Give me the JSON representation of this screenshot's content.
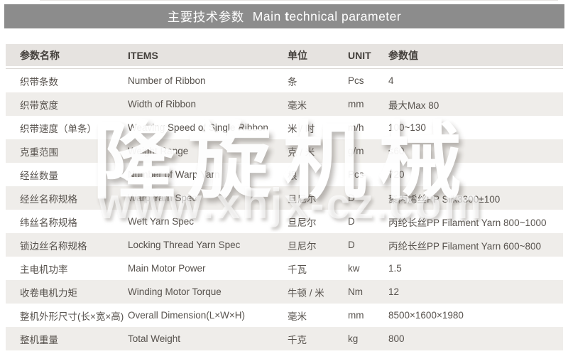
{
  "title": {
    "cn": "主要技术参数",
    "en_pre": "Main ",
    "en_bold": "t",
    "en_post": "echnical parameter"
  },
  "watermark": {
    "brand": "隆旋机械",
    "url": "www.xhjx-cz.com"
  },
  "table": {
    "headers": {
      "name_cn": "参数名称",
      "items": "ITEMS",
      "unit_cn": "单位",
      "unit_en": "UNIT",
      "value": "参数值"
    },
    "rows": [
      {
        "name_cn": "织带条数",
        "item": "Number of Ribbon",
        "unit_cn": "条",
        "unit_en": "Pcs",
        "value": "4"
      },
      {
        "name_cn": "织带宽度",
        "item": "Width of Ribbon",
        "unit_cn": "毫米",
        "unit_en": "mm",
        "value": "最大Max 80"
      },
      {
        "name_cn": "织带速度（单条）",
        "item": "Weaving Speed of Single Ribbon",
        "unit_cn": "米 / 时",
        "unit_en": "m/h",
        "value": "100~130"
      },
      {
        "name_cn": "克重范围",
        "item": "Weight Range",
        "unit_cn": "克 / 米",
        "unit_en": "g/m",
        "value": "≤60"
      },
      {
        "name_cn": "经丝数量",
        "item": "Number of Warp Yarn",
        "unit_cn": "根",
        "unit_en": "Pcs",
        "value": "720"
      },
      {
        "name_cn": "经丝名称规格",
        "item": "Warp Yarn Spec",
        "unit_cn": "旦尼尔",
        "unit_en": "D",
        "value": "聚丙烯丝PP Silk3300±100"
      },
      {
        "name_cn": "纬丝名称规格",
        "item": "Weft Yarn Spec",
        "unit_cn": "旦尼尔",
        "unit_en": "D",
        "value": "丙纶长丝PP Filament Yarn 800~1000"
      },
      {
        "name_cn": "锁边丝名称规格",
        "item": "Locking Thread Yarn Spec",
        "unit_cn": "旦尼尔",
        "unit_en": "D",
        "value": "丙纶长丝PP Filament Yarn 600~800"
      },
      {
        "name_cn": "主电机功率",
        "item": "Main Motor Power",
        "unit_cn": "千瓦",
        "unit_en": "kw",
        "value": "1.5"
      },
      {
        "name_cn": "收卷电机力矩",
        "item": "Winding Motor Torque",
        "unit_cn": "牛顿 / 米",
        "unit_en": "Nm",
        "value": "12"
      },
      {
        "name_cn": "整机外形尺寸(长×宽×高)",
        "item": "Overall Dimension(L×W×H)",
        "unit_cn": "毫米",
        "unit_en": "mm",
        "value": "8500×1600×1980"
      },
      {
        "name_cn": "整机重量",
        "item": "Total Weight",
        "unit_cn": "千克",
        "unit_en": "kg",
        "value": "800"
      }
    ]
  },
  "colors": {
    "title_bar_bg": "#8c8c8c",
    "header_row_bg": "#e6e3e0",
    "alt_row_bg": "#efedea",
    "body_text": "#57524d"
  }
}
